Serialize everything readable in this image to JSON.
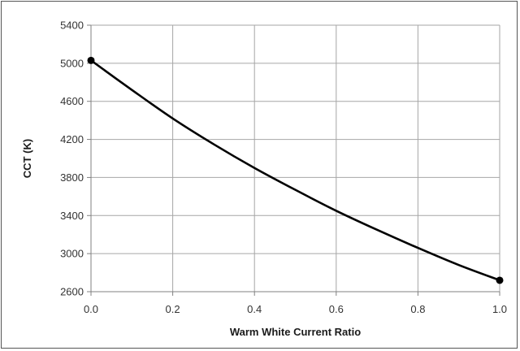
{
  "chart_data": {
    "type": "line",
    "title": "",
    "xlabel": "Warm White Current Ratio",
    "ylabel": "CCT (K)",
    "xlim": [
      0,
      1
    ],
    "ylim": [
      2600,
      5400
    ],
    "x_ticks": [
      "0.0",
      "0.2",
      "0.4",
      "0.6",
      "0.8",
      "1.0"
    ],
    "y_ticks": [
      "2600",
      "3000",
      "3400",
      "3800",
      "4200",
      "4600",
      "5000",
      "5400"
    ],
    "grid": true,
    "legend": "none",
    "series": [
      {
        "x": [
          0.0,
          0.1,
          0.2,
          0.3,
          0.4,
          0.5,
          0.6,
          0.7,
          0.8,
          0.9,
          1.0
        ],
        "values": [
          5030,
          4720,
          4420,
          4150,
          3900,
          3670,
          3450,
          3250,
          3060,
          2880,
          2720
        ],
        "color": "#000000",
        "markers_at_ends": true
      }
    ]
  }
}
